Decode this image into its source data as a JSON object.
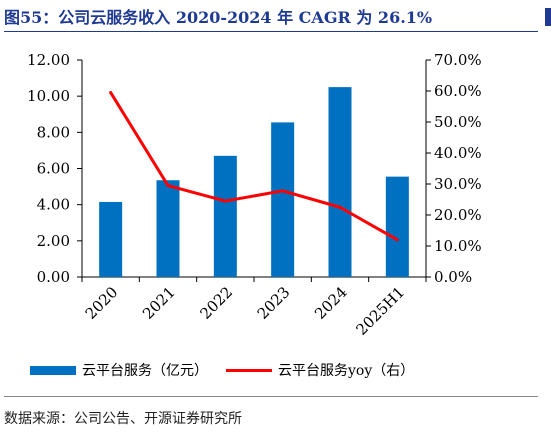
{
  "figure": {
    "title": "图55：公司云服务收入 2020-2024 年 CAGR 为 26.1%",
    "source": "数据来源：公司公告、开源证券研究所"
  },
  "chart_data": {
    "type": "bar",
    "categories": [
      "2020",
      "2021",
      "2022",
      "2023",
      "2024",
      "2025H1"
    ],
    "series": [
      {
        "name": "云平台服务（亿元）",
        "type": "bar",
        "axis": "left",
        "color": "#0070c0",
        "values": [
          4.15,
          5.35,
          6.7,
          8.55,
          10.5,
          5.55
        ]
      },
      {
        "name": "云平台服务yoy（右）",
        "type": "line",
        "axis": "right",
        "color": "#ff0000",
        "values": [
          59.5,
          29.5,
          24.5,
          27.8,
          22.5,
          12.0
        ]
      }
    ],
    "y_left": {
      "min": 0,
      "max": 12,
      "step": 2,
      "tick_labels": [
        "0.00",
        "2.00",
        "4.00",
        "6.00",
        "8.00",
        "10.00",
        "12.00"
      ]
    },
    "y_right": {
      "min": 0,
      "max": 70,
      "step": 10,
      "tick_labels": [
        "0.0%",
        "10.0%",
        "20.0%",
        "30.0%",
        "40.0%",
        "50.0%",
        "60.0%",
        "70.0%"
      ]
    },
    "grid": false,
    "legend_position": "bottom"
  }
}
